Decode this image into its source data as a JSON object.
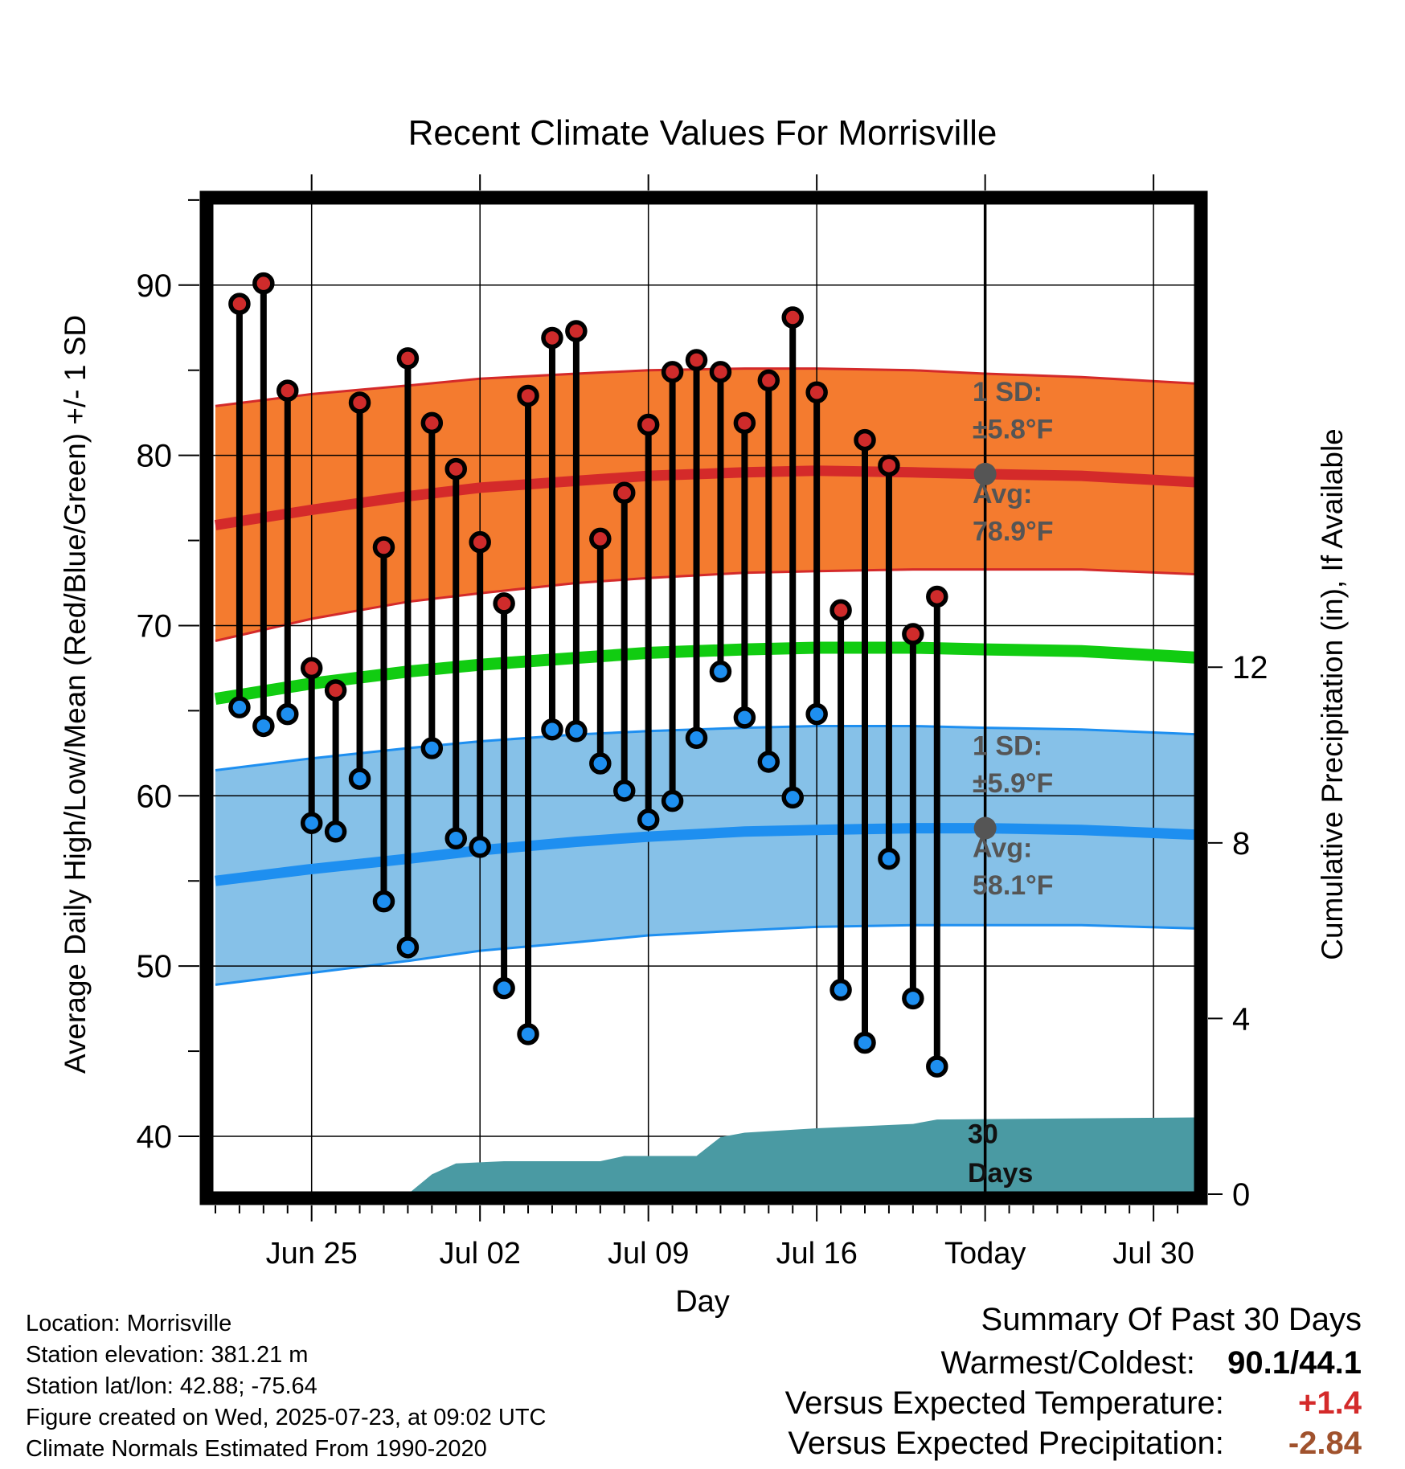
{
  "chart_data": {
    "type": "line",
    "title": "Recent Climate Values For Morrisville",
    "xlabel": "Day",
    "ylabel_left": "Average Daily High/Low/Mean (Red/Blue/Green) +/- 1 SD",
    "ylabel_right": "Cumulative Precipitation (in), If Available",
    "ylim": [
      36.6,
      94.9
    ],
    "precip_ylim": [
      0,
      22.6
    ],
    "x_range_day_offset": [
      -32.2,
      8.8
    ],
    "x_day_reference": "2025-07-23",
    "x_ticks": [
      {
        "label": "Jun 25",
        "date": "2025-06-25"
      },
      {
        "label": "Jul 02",
        "date": "2025-07-02"
      },
      {
        "label": "Jul 09",
        "date": "2025-07-09"
      },
      {
        "label": "Jul 16",
        "date": "2025-07-16"
      },
      {
        "label": "Today",
        "date": "2025-07-23"
      },
      {
        "label": "Jul 30",
        "date": "2025-07-30"
      }
    ],
    "y_ticks": [
      40,
      50,
      60,
      70,
      80,
      90
    ],
    "y_ticks_right": [
      0,
      4,
      8,
      12
    ],
    "grid": true,
    "colors": {
      "high_band": "#f47b2f",
      "high_line": "#d42a2a",
      "low_band": "#86c1e8",
      "low_line": "#1e8ff0",
      "mean_line": "#11cc11",
      "precip": "#4a9aa3",
      "marker_high": "#cf2b2b",
      "marker_low": "#1e8ff0",
      "annotation": "#555555"
    },
    "normals": {
      "dates": [
        "2025-06-21",
        "2025-06-25",
        "2025-06-29",
        "2025-07-02",
        "2025-07-06",
        "2025-07-09",
        "2025-07-13",
        "2025-07-16",
        "2025-07-20",
        "2025-07-23",
        "2025-07-27",
        "2025-08-01"
      ],
      "high_avg": [
        75.9,
        76.8,
        77.6,
        78.1,
        78.5,
        78.8,
        79.0,
        79.1,
        79.0,
        78.9,
        78.8,
        78.4
      ],
      "high_upper": [
        82.9,
        83.6,
        84.1,
        84.5,
        84.8,
        85.0,
        85.1,
        85.1,
        85.0,
        84.8,
        84.6,
        84.2
      ],
      "high_lower": [
        69.1,
        70.4,
        71.4,
        71.9,
        72.5,
        72.8,
        73.1,
        73.2,
        73.3,
        73.3,
        73.3,
        73.0
      ],
      "mean_avg": [
        65.7,
        66.6,
        67.3,
        67.7,
        68.1,
        68.4,
        68.6,
        68.7,
        68.7,
        68.6,
        68.5,
        68.1
      ],
      "low_avg": [
        55.0,
        55.7,
        56.3,
        56.8,
        57.3,
        57.6,
        57.9,
        58.0,
        58.1,
        58.1,
        58.0,
        57.7
      ],
      "low_upper": [
        61.5,
        62.2,
        62.8,
        63.2,
        63.6,
        63.8,
        64.0,
        64.1,
        64.1,
        64.0,
        63.9,
        63.6
      ],
      "low_lower": [
        48.9,
        49.6,
        50.3,
        50.9,
        51.4,
        51.8,
        52.1,
        52.3,
        52.4,
        52.4,
        52.4,
        52.2
      ]
    },
    "series": [
      {
        "name": "High",
        "dates": [
          "2025-06-22",
          "2025-06-23",
          "2025-06-24",
          "2025-06-25",
          "2025-06-26",
          "2025-06-27",
          "2025-06-28",
          "2025-06-29",
          "2025-06-30",
          "2025-07-01",
          "2025-07-02",
          "2025-07-03",
          "2025-07-04",
          "2025-07-05",
          "2025-07-06",
          "2025-07-07",
          "2025-07-08",
          "2025-07-09",
          "2025-07-10",
          "2025-07-11",
          "2025-07-12",
          "2025-07-13",
          "2025-07-14",
          "2025-07-15",
          "2025-07-16",
          "2025-07-17",
          "2025-07-18",
          "2025-07-19",
          "2025-07-20",
          "2025-07-21",
          "2025-07-22"
        ],
        "values": [
          88.9,
          90.1,
          83.8,
          67.5,
          66.2,
          83.1,
          74.6,
          85.7,
          81.9,
          79.2,
          74.9,
          71.3,
          83.5,
          86.9,
          87.3,
          75.1,
          77.8,
          81.8,
          84.9,
          85.6,
          84.9,
          81.9,
          84.4,
          88.1,
          83.7,
          70.9,
          80.9,
          79.4,
          69.5,
          71.7,
          null
        ]
      },
      {
        "name": "Low",
        "dates": [
          "2025-06-22",
          "2025-06-23",
          "2025-06-24",
          "2025-06-25",
          "2025-06-26",
          "2025-06-27",
          "2025-06-28",
          "2025-06-29",
          "2025-06-30",
          "2025-07-01",
          "2025-07-02",
          "2025-07-03",
          "2025-07-04",
          "2025-07-05",
          "2025-07-06",
          "2025-07-07",
          "2025-07-08",
          "2025-07-09",
          "2025-07-10",
          "2025-07-11",
          "2025-07-12",
          "2025-07-13",
          "2025-07-14",
          "2025-07-15",
          "2025-07-16",
          "2025-07-17",
          "2025-07-18",
          "2025-07-19",
          "2025-07-20",
          "2025-07-21",
          "2025-07-22"
        ],
        "values": [
          65.2,
          64.1,
          64.8,
          58.4,
          57.9,
          61.0,
          53.8,
          51.1,
          62.8,
          57.5,
          57.0,
          48.7,
          46.0,
          63.9,
          63.8,
          61.9,
          60.3,
          58.6,
          59.7,
          63.4,
          67.3,
          64.6,
          62.0,
          59.9,
          64.8,
          48.6,
          45.5,
          56.3,
          48.1,
          44.1,
          null
        ]
      },
      {
        "name": "Cumulative Precipitation",
        "dates": [
          "2025-06-22",
          "2025-06-29",
          "2025-06-30",
          "2025-07-01",
          "2025-07-03",
          "2025-07-07",
          "2025-07-08",
          "2025-07-11",
          "2025-07-12",
          "2025-07-13",
          "2025-07-16",
          "2025-07-20",
          "2025-07-21",
          "2025-08-01"
        ],
        "values": [
          0.0,
          0.0,
          0.45,
          0.7,
          0.75,
          0.75,
          0.87,
          0.87,
          1.3,
          1.4,
          1.5,
          1.6,
          1.7,
          1.75
        ]
      }
    ],
    "annotations": {
      "high_sd": {
        "line1": "1 SD:",
        "line2": "±5.8°F"
      },
      "high_avg": {
        "line1": "Avg:",
        "line2": "78.9°F",
        "value": 78.9
      },
      "low_sd": {
        "line1": "1 SD:",
        "line2": "±5.9°F"
      },
      "low_avg": {
        "line1": "Avg:",
        "line2": "58.1°F",
        "value": 58.1
      },
      "window": {
        "line1": "30",
        "line2": "Days"
      }
    }
  },
  "info": {
    "location": "Location: Morrisville",
    "elevation": "Station elevation: 381.21 m",
    "latlon": "Station lat/lon: 42.88; -75.64",
    "created": "Figure created on Wed, 2025-07-23, at 09:02 UTC",
    "normals": "Climate Normals Estimated From 1990-2020"
  },
  "summary": {
    "title": "Summary Of Past 30 Days",
    "warmest_coldest_label": "Warmest/Coldest:",
    "warmest_coldest_value": "90.1/44.1",
    "temp_label": "Versus Expected Temperature:",
    "temp_value": "+1.4",
    "temp_color": "#d42a2a",
    "precip_label": "Versus Expected Precipitation:",
    "precip_value": "-2.84",
    "precip_color": "#a0522d"
  }
}
